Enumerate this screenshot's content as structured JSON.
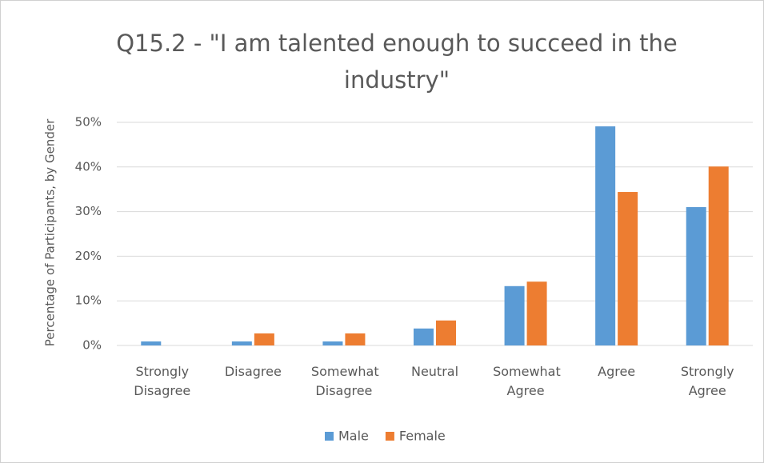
{
  "chart_data": {
    "type": "bar",
    "title": "Q15.2 - \"I am talented enough to succeed in the industry\"",
    "y_label": "Percentage of Participants, by Gender",
    "categories": [
      "Strongly Disagree",
      "Disagree",
      "Somewhat Disagree",
      "Neutral",
      "Somewhat Agree",
      "Agree",
      "Strongly Agree"
    ],
    "series": [
      {
        "name": "Male",
        "color": "#5b9bd5",
        "values": [
          0.9,
          0.9,
          0.9,
          3.8,
          13.3,
          49.1,
          31.0
        ]
      },
      {
        "name": "Female",
        "color": "#ed7d31",
        "values": [
          0,
          2.7,
          2.7,
          5.6,
          14.3,
          34.4,
          40.1
        ]
      }
    ],
    "ylim": [
      0,
      50
    ],
    "yticks": [
      {
        "value": 0,
        "label": "0%"
      },
      {
        "value": 10,
        "label": "10%"
      },
      {
        "value": 20,
        "label": "20%"
      },
      {
        "value": 30,
        "label": "30%"
      },
      {
        "value": 40,
        "label": "40%"
      },
      {
        "value": 50,
        "label": "50%"
      }
    ],
    "grid": true,
    "legend": "bottom"
  }
}
